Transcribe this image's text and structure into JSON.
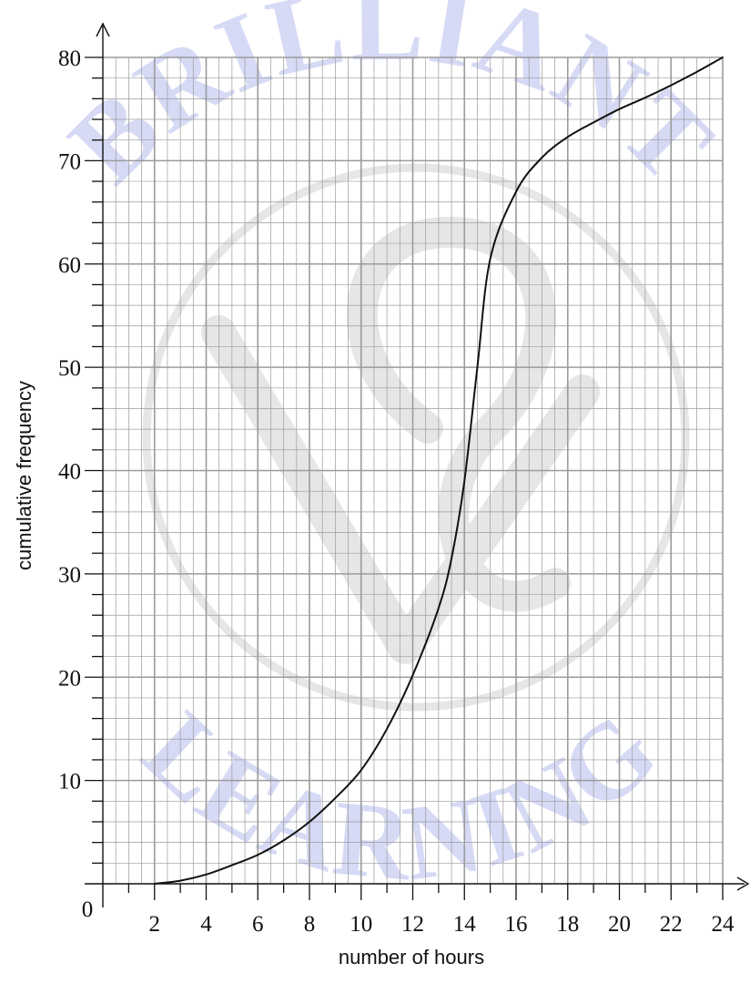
{
  "chart_data": {
    "type": "line",
    "title": "",
    "xlabel": "number of hours",
    "ylabel": "cumulative frequency",
    "origin_label": "0",
    "xlim": [
      0,
      24
    ],
    "ylim": [
      0,
      80
    ],
    "x_ticks": [
      2,
      4,
      6,
      8,
      10,
      12,
      14,
      16,
      18,
      20,
      22,
      24
    ],
    "x_tick_labels": [
      "2",
      "4",
      "6",
      "8",
      "10",
      "12",
      "14",
      "16",
      "18",
      "20",
      "22",
      "24"
    ],
    "y_ticks": [
      10,
      20,
      30,
      40,
      50,
      60,
      70,
      80
    ],
    "y_tick_labels": [
      "10",
      "20",
      "30",
      "40",
      "50",
      "60",
      "70",
      "80"
    ],
    "grid": true,
    "minor_grid_step_x": 0.5,
    "minor_grid_step_y": 2,
    "major_grid_step_x": 2,
    "major_grid_step_y": 10,
    "series": [
      {
        "color": "#111111",
        "x": [
          2,
          3,
          4,
          5,
          6,
          7,
          8,
          9,
          10,
          11,
          12,
          13,
          13.5,
          14,
          14.5,
          15,
          16,
          17,
          18,
          19,
          20,
          21,
          22,
          23,
          24
        ],
        "y": [
          0,
          0.3,
          0.9,
          1.8,
          2.8,
          4.2,
          6,
          8.3,
          11,
          15,
          20.2,
          26.7,
          31.5,
          39,
          50,
          60.5,
          67,
          70.3,
          72.3,
          73.7,
          75,
          76.1,
          77.3,
          78.6,
          80
        ]
      }
    ],
    "colors": {
      "curve": "#111111",
      "grid": "#9b9b9b",
      "axis": "#111111",
      "watermark_logo": "#d6daf5",
      "watermark_mark": "#e4e4e4"
    }
  },
  "watermark": {
    "top_text": "BRILLIANT",
    "bottom_text": "LEARNING"
  }
}
